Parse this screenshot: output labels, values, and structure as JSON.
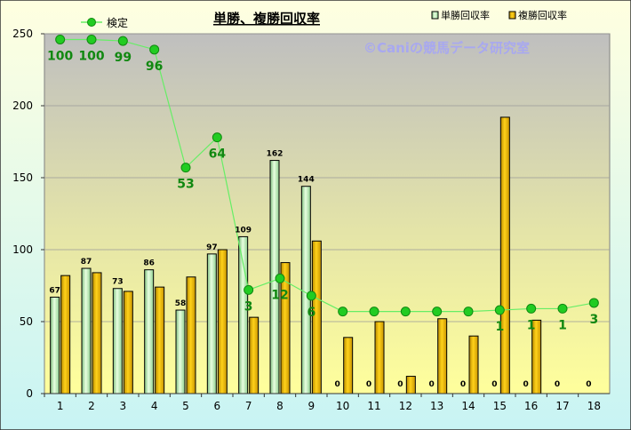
{
  "chart_data": {
    "type": "bar",
    "title": "単勝、複勝回収率",
    "watermark": "©Caniの競馬データ研究室",
    "categories": [
      "1",
      "2",
      "3",
      "4",
      "5",
      "6",
      "7",
      "8",
      "9",
      "10",
      "11",
      "12",
      "13",
      "14",
      "15",
      "16",
      "17",
      "18"
    ],
    "ylim": [
      0,
      250
    ],
    "yticks": [
      0,
      50,
      100,
      150,
      200,
      250
    ],
    "series": [
      {
        "name": "単勝回収率",
        "kind": "bar",
        "color": "#c8f0c0",
        "values": [
          67,
          87,
          73,
          86,
          58,
          97,
          109,
          162,
          144,
          0,
          0,
          0,
          0,
          0,
          0,
          0,
          0,
          0
        ],
        "labels": [
          "67",
          "87",
          "73",
          "86",
          "58",
          "97",
          "109",
          "162",
          "144",
          "0",
          "0",
          "0",
          "0",
          "0",
          "0",
          "0",
          "0",
          "0"
        ]
      },
      {
        "name": "複勝回収率",
        "kind": "bar",
        "color": "#e8b400",
        "values": [
          82,
          84,
          71,
          74,
          81,
          100,
          53,
          91,
          106,
          39,
          50,
          12,
          52,
          40,
          192,
          51,
          0,
          0
        ]
      },
      {
        "name": "検定",
        "kind": "line",
        "color": "#22bb22",
        "values": [
          246,
          246,
          245,
          239,
          157,
          178,
          72,
          80,
          68,
          57,
          57,
          57,
          57,
          57,
          58,
          59,
          59,
          63
        ],
        "labels": [
          "100",
          "100",
          "99",
          "96",
          "53",
          "64",
          "3",
          "12",
          "6",
          "",
          "",
          "",
          "",
          "",
          "1",
          "1",
          "1",
          "3"
        ]
      }
    ],
    "grid": true,
    "legend": "top"
  }
}
